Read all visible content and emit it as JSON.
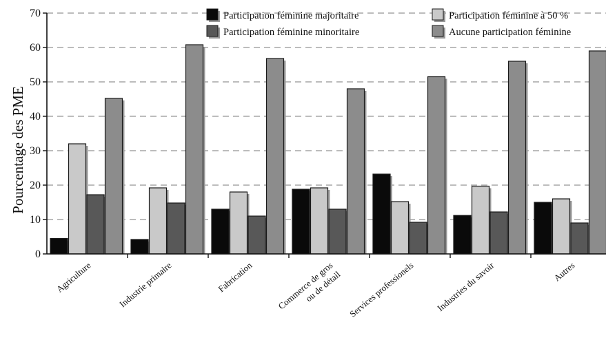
{
  "chart_data": {
    "type": "bar",
    "title": "",
    "xlabel": "",
    "ylabel": "Pourcentage des PME",
    "ylim": [
      0,
      70
    ],
    "yticks": [
      0,
      10,
      20,
      30,
      40,
      50,
      60,
      70
    ],
    "grid": "horizontal dashed",
    "legend_position": "top-right",
    "categories": [
      "Agriculture",
      "Industrie primaire",
      "Fabrication",
      "Commerce de gros ou de détail",
      "Services professionels",
      "Industries du savoir",
      "Autres"
    ],
    "category_lines": [
      [
        "Agriculture"
      ],
      [
        "Industrie primaire"
      ],
      [
        "Fabrication"
      ],
      [
        "Commerce de gros",
        "ou de détail"
      ],
      [
        "Services professionels"
      ],
      [
        "Industries du savoir"
      ],
      [
        "Autres"
      ]
    ],
    "series": [
      {
        "name": "Participation féminine majoritaire",
        "color": "#0a0a0a",
        "values": [
          4.5,
          4.2,
          13,
          18.8,
          23.2,
          11.2,
          15
        ]
      },
      {
        "name": "Participation féminine à 50 %",
        "color": "#c9c9c9",
        "values": [
          32,
          19.2,
          18,
          19.2,
          15.2,
          19.7,
          16
        ]
      },
      {
        "name": "Participation féminine minoritaire",
        "color": "#585858",
        "values": [
          17.2,
          14.8,
          11,
          13,
          9.2,
          12.2,
          9
        ]
      },
      {
        "name": "Aucune participation féminine",
        "color": "#8c8c8c",
        "values": [
          45.2,
          60.8,
          56.8,
          48,
          51.5,
          56,
          59
        ]
      }
    ]
  }
}
